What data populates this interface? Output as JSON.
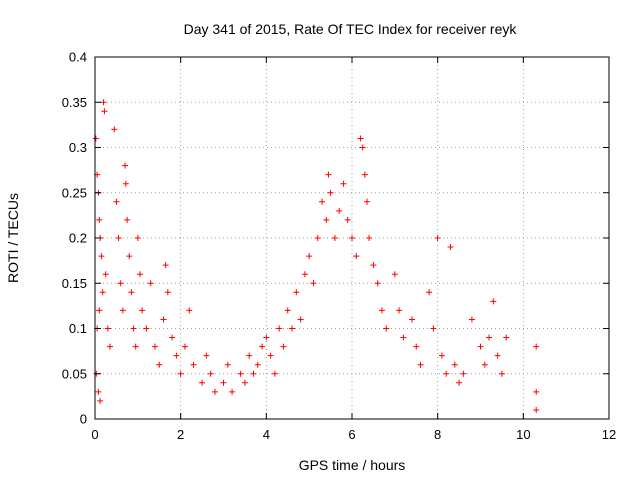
{
  "chart_data": {
    "type": "scatter",
    "title": "Day 341 of 2015, Rate Of TEC Index for receiver reyk",
    "xlabel": "GPS time / hours",
    "ylabel": "ROTI / TECUs",
    "xlim": [
      0,
      12
    ],
    "ylim": [
      0,
      0.4
    ],
    "xticks": [
      0,
      2,
      4,
      6,
      8,
      10,
      12
    ],
    "yticks": [
      0,
      0.05,
      0.1,
      0.15,
      0.2,
      0.25,
      0.3,
      0.35,
      0.4
    ],
    "xtick_labels": [
      "0",
      "2",
      "4",
      "6",
      "8",
      "10",
      "12"
    ],
    "ytick_labels": [
      "0",
      "0.05",
      "0.1",
      "0.15",
      "0.2",
      "0.25",
      "0.3",
      "0.35",
      "0.4"
    ],
    "grid": true,
    "marker": "+",
    "color": "#ff0000",
    "series": [
      {
        "name": "ROTI",
        "points": [
          [
            0.02,
            0.31
          ],
          [
            0.05,
            0.27
          ],
          [
            0.08,
            0.25
          ],
          [
            0.1,
            0.22
          ],
          [
            0.12,
            0.2
          ],
          [
            0.15,
            0.18
          ],
          [
            0.2,
            0.35
          ],
          [
            0.22,
            0.34
          ],
          [
            0.25,
            0.16
          ],
          [
            0.18,
            0.14
          ],
          [
            0.1,
            0.12
          ],
          [
            0.05,
            0.1
          ],
          [
            0.03,
            0.05
          ],
          [
            0.08,
            0.03
          ],
          [
            0.12,
            0.02
          ],
          [
            0.3,
            0.1
          ],
          [
            0.35,
            0.08
          ],
          [
            0.45,
            0.32
          ],
          [
            0.5,
            0.24
          ],
          [
            0.55,
            0.2
          ],
          [
            0.6,
            0.15
          ],
          [
            0.65,
            0.12
          ],
          [
            0.7,
            0.28
          ],
          [
            0.72,
            0.26
          ],
          [
            0.75,
            0.22
          ],
          [
            0.8,
            0.18
          ],
          [
            0.85,
            0.14
          ],
          [
            0.9,
            0.1
          ],
          [
            0.95,
            0.08
          ],
          [
            1.0,
            0.2
          ],
          [
            1.05,
            0.16
          ],
          [
            1.1,
            0.12
          ],
          [
            1.2,
            0.1
          ],
          [
            1.3,
            0.15
          ],
          [
            1.4,
            0.08
          ],
          [
            1.5,
            0.06
          ],
          [
            1.6,
            0.11
          ],
          [
            1.65,
            0.17
          ],
          [
            1.7,
            0.14
          ],
          [
            1.8,
            0.09
          ],
          [
            1.9,
            0.07
          ],
          [
            2.0,
            0.05
          ],
          [
            2.1,
            0.08
          ],
          [
            2.2,
            0.12
          ],
          [
            2.3,
            0.06
          ],
          [
            2.5,
            0.04
          ],
          [
            2.6,
            0.07
          ],
          [
            2.7,
            0.05
          ],
          [
            2.8,
            0.03
          ],
          [
            3.0,
            0.04
          ],
          [
            3.1,
            0.06
          ],
          [
            3.2,
            0.03
          ],
          [
            3.4,
            0.05
          ],
          [
            3.5,
            0.04
          ],
          [
            3.6,
            0.07
          ],
          [
            3.7,
            0.05
          ],
          [
            3.8,
            0.06
          ],
          [
            3.9,
            0.08
          ],
          [
            4.0,
            0.09
          ],
          [
            4.1,
            0.07
          ],
          [
            4.2,
            0.05
          ],
          [
            4.3,
            0.1
          ],
          [
            4.4,
            0.08
          ],
          [
            4.5,
            0.12
          ],
          [
            4.6,
            0.1
          ],
          [
            4.7,
            0.14
          ],
          [
            4.8,
            0.11
          ],
          [
            4.9,
            0.16
          ],
          [
            5.0,
            0.18
          ],
          [
            5.1,
            0.15
          ],
          [
            5.2,
            0.2
          ],
          [
            5.3,
            0.24
          ],
          [
            5.4,
            0.22
          ],
          [
            5.45,
            0.27
          ],
          [
            5.5,
            0.25
          ],
          [
            5.6,
            0.2
          ],
          [
            5.7,
            0.23
          ],
          [
            5.8,
            0.26
          ],
          [
            5.9,
            0.22
          ],
          [
            6.0,
            0.2
          ],
          [
            6.1,
            0.18
          ],
          [
            6.2,
            0.31
          ],
          [
            6.25,
            0.3
          ],
          [
            6.3,
            0.27
          ],
          [
            6.35,
            0.24
          ],
          [
            6.4,
            0.2
          ],
          [
            6.5,
            0.17
          ],
          [
            6.6,
            0.15
          ],
          [
            6.7,
            0.12
          ],
          [
            6.8,
            0.1
          ],
          [
            7.0,
            0.16
          ],
          [
            7.1,
            0.12
          ],
          [
            7.2,
            0.09
          ],
          [
            7.4,
            0.11
          ],
          [
            7.5,
            0.08
          ],
          [
            7.6,
            0.06
          ],
          [
            7.8,
            0.14
          ],
          [
            7.9,
            0.1
          ],
          [
            8.0,
            0.2
          ],
          [
            8.1,
            0.07
          ],
          [
            8.2,
            0.05
          ],
          [
            8.3,
            0.19
          ],
          [
            8.4,
            0.06
          ],
          [
            8.5,
            0.04
          ],
          [
            8.6,
            0.05
          ],
          [
            8.8,
            0.11
          ],
          [
            9.0,
            0.08
          ],
          [
            9.1,
            0.06
          ],
          [
            9.2,
            0.09
          ],
          [
            9.3,
            0.13
          ],
          [
            9.4,
            0.07
          ],
          [
            9.5,
            0.05
          ],
          [
            9.6,
            0.09
          ],
          [
            10.3,
            0.08
          ],
          [
            10.3,
            0.03
          ],
          [
            10.3,
            0.01
          ]
        ]
      }
    ]
  }
}
